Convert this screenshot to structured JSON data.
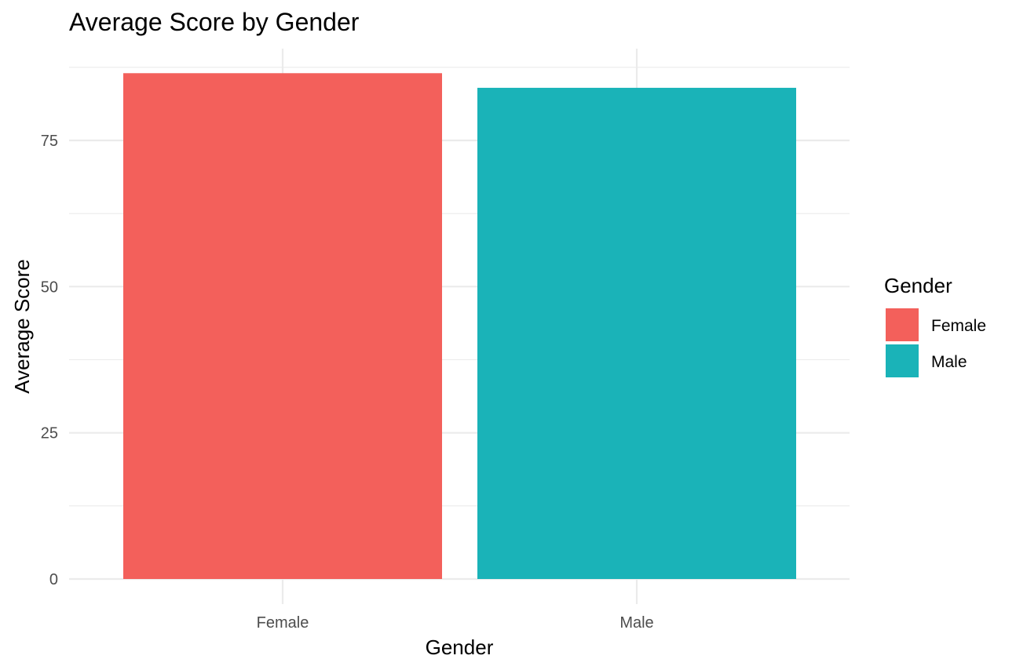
{
  "chart_data": {
    "type": "bar",
    "title": "Average Score by Gender",
    "xlabel": "Gender",
    "ylabel": "Average Score",
    "categories": [
      "Female",
      "Male"
    ],
    "values": [
      86.5,
      84
    ],
    "ylim": [
      0,
      87.5
    ],
    "yticks": [
      0,
      25,
      50,
      75
    ],
    "ytick_labels": [
      "0",
      "25",
      "50",
      "75"
    ],
    "colors": [
      "#F8766D",
      "#00BFC4"
    ],
    "bar_colors_rendered": [
      "#f3605b",
      "#1ab3b8"
    ],
    "grid": true,
    "legend": {
      "title": "Gender",
      "position": "right",
      "entries": [
        {
          "label": "Female",
          "color": "#f3605b"
        },
        {
          "label": "Male",
          "color": "#1ab3b8"
        }
      ]
    }
  }
}
